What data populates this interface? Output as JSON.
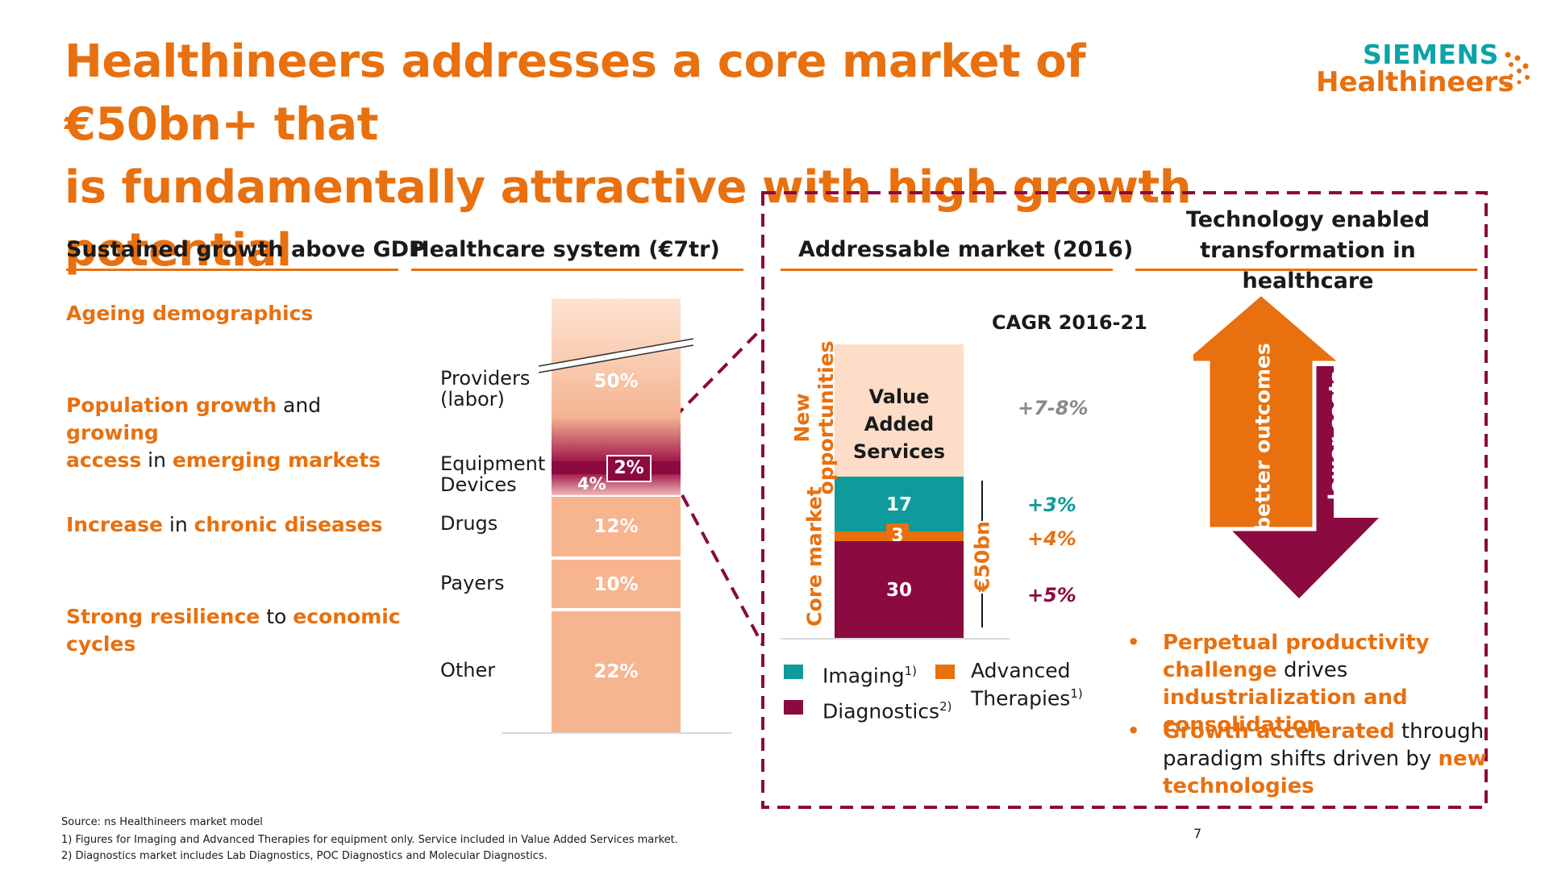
{
  "title_line1": "Healthineers addresses a core market of €50bn+ that",
  "title_line2": "is fundamentally attractive with high growth potential",
  "logo": {
    "brand": "SIEMENS",
    "sub": "Healthineers"
  },
  "columns": {
    "growth": "Sustained growth above GDP",
    "healthcare": "Healthcare system (€7tr)",
    "addressable": "Addressable market (2016)",
    "tech_line1": "Technology enabled",
    "tech_line2": "transformation in healthcare"
  },
  "drivers": {
    "d1": "Ageing demographics",
    "d2_a": "Population growth",
    "d2_b": " and ",
    "d2_c": "growing",
    "d2_d": "access",
    "d2_e": " in ",
    "d2_f": "emerging markets",
    "d3_a": "Increase",
    "d3_b": " in ",
    "d3_c": "chronic diseases",
    "d4_a": "Strong resilience",
    "d4_b": " to ",
    "d4_c": "economic",
    "d4_d": "cycles"
  },
  "healthcare_system": {
    "labels": {
      "providers_1": "Providers",
      "providers_2": "(labor)",
      "equipment_1": "Equipment",
      "equipment_2": "Devices",
      "drugs": "Drugs",
      "payers": "Payers",
      "other": "Other"
    },
    "values": {
      "providers": "50%",
      "equipment": "2%",
      "devices": "4%",
      "drugs": "12%",
      "payers": "10%",
      "other": "22%"
    }
  },
  "addressable_market": {
    "cagr_header": "CAGR 2016-21",
    "value_added_1": "Value Added",
    "value_added_2": "Services",
    "imaging": "17",
    "advanced": "3",
    "diagnostics": "30",
    "total": "€50bn",
    "new_opps_1": "New",
    "new_opps_2": "opportunities",
    "core_market": "Core market",
    "cagr_values": {
      "vas": "+7-8%",
      "imaging": "+3%",
      "advanced": "+4%",
      "diagnostics": "+5%"
    },
    "legend": {
      "imaging": "Imaging",
      "imaging_sup": "1)",
      "advanced_1": "Advanced",
      "advanced_2": "Therapies",
      "advanced_sup": "1)",
      "diagnostics": "Diagnostics",
      "diagnostics_sup": "2)"
    }
  },
  "technology": {
    "up_arrow": "better outcomes",
    "down_arrow": "lower costs",
    "bullet1_a": "Perpetual productivity challenge",
    "bullet1_b": " drives ",
    "bullet1_c": "industrialization and consolidation",
    "bullet2_a": "Growth accelerated",
    "bullet2_b": " through paradigm shifts driven by ",
    "bullet2_c": "new technologies"
  },
  "footnotes": {
    "source": "Source:  ns Healthineers market model",
    "fn1": "1) Figures for Imaging and Advanced Therapies for equipment only. Service included in Value Added Services market.",
    "fn2": "2) Diagnostics market includes Lab Diagnostics, POC Diagnostics and Molecular Diagnostics."
  },
  "page_number": "7",
  "colors": {
    "orange": "#e8700f",
    "teal": "#0f9b9b",
    "claret": "#8b0a3f",
    "peach": "#f6b48f",
    "peach_light": "#fce0d0"
  }
}
